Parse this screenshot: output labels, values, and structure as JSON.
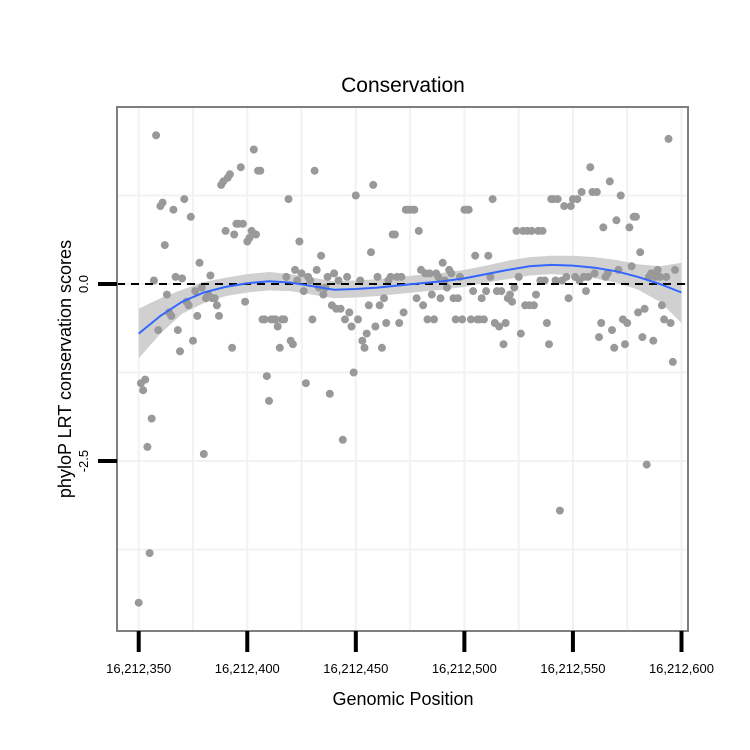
{
  "chart_data": {
    "type": "scatter",
    "title": "Conservation",
    "xlabel": "Genomic Position",
    "ylabel": "phyloP LRT conservation scores",
    "xlim": [
      16212340,
      16212603
    ],
    "ylim": [
      -4.9,
      2.5
    ],
    "x_ticks": [
      16212350,
      16212400,
      16212450,
      16212500,
      16212550,
      16212600
    ],
    "x_tick_labels": [
      "16,212,350",
      "16,212,400",
      "16,212,450",
      "16,212,500",
      "16,212,550",
      "16,212,600"
    ],
    "y_ticks": [
      0,
      -2.5
    ],
    "y_tick_labels": [
      "0.0",
      "-2.5"
    ],
    "reference_line": 0,
    "colors": {
      "points": "#999999",
      "smooth": "#3366ff",
      "band": "#d0d0d0",
      "grid": "#f2f2f2",
      "border": "#7f7f7f",
      "refline": "#000000"
    },
    "points": [
      [
        16212350,
        -4.5
      ],
      [
        16212351,
        -1.4
      ],
      [
        16212352,
        -1.5
      ],
      [
        16212353,
        -1.35
      ],
      [
        16212354,
        -2.3
      ],
      [
        16212355,
        -3.8
      ],
      [
        16212356,
        -1.9
      ],
      [
        16212357,
        0.05
      ],
      [
        16212358,
        2.1
      ],
      [
        16212359,
        -0.65
      ],
      [
        16212360,
        1.1
      ],
      [
        16212361,
        1.15
      ],
      [
        16212362,
        0.55
      ],
      [
        16212363,
        -0.15
      ],
      [
        16212364,
        -0.4
      ],
      [
        16212365,
        -0.45
      ],
      [
        16212366,
        1.05
      ],
      [
        16212367,
        0.1
      ],
      [
        16212368,
        -0.65
      ],
      [
        16212369,
        -0.95
      ],
      [
        16212370,
        0.08
      ],
      [
        16212371,
        1.2
      ],
      [
        16212372,
        -0.25
      ],
      [
        16212373,
        -0.3
      ],
      [
        16212374,
        0.95
      ],
      [
        16212375,
        -0.8
      ],
      [
        16212376,
        -0.1
      ],
      [
        16212377,
        -0.45
      ],
      [
        16212378,
        0.3
      ],
      [
        16212379,
        -0.05
      ],
      [
        16212380,
        -2.4
      ],
      [
        16212381,
        -0.2
      ],
      [
        16212382,
        -0.15
      ],
      [
        16212383,
        0.12
      ],
      [
        16212384,
        -0.2
      ],
      [
        16212385,
        -0.2
      ],
      [
        16212386,
        -0.3
      ],
      [
        16212387,
        -0.45
      ],
      [
        16212388,
        1.4
      ],
      [
        16212389,
        1.45
      ],
      [
        16212390,
        0.75
      ],
      [
        16212391,
        1.5
      ],
      [
        16212392,
        1.55
      ],
      [
        16212393,
        -0.9
      ],
      [
        16212394,
        0.7
      ],
      [
        16212395,
        0.85
      ],
      [
        16212396,
        0.85
      ],
      [
        16212397,
        1.65
      ],
      [
        16212398,
        0.85
      ],
      [
        16212399,
        -0.25
      ],
      [
        16212400,
        0.6
      ],
      [
        16212401,
        0.65
      ],
      [
        16212402,
        0.75
      ],
      [
        16212403,
        1.9
      ],
      [
        16212404,
        0.7
      ],
      [
        16212405,
        1.6
      ],
      [
        16212406,
        1.6
      ],
      [
        16212407,
        -0.5
      ],
      [
        16212408,
        -0.5
      ],
      [
        16212409,
        -1.3
      ],
      [
        16212410,
        -1.65
      ],
      [
        16212411,
        -0.5
      ],
      [
        16212412,
        -0.5
      ],
      [
        16212413,
        -0.5
      ],
      [
        16212414,
        -0.6
      ],
      [
        16212415,
        -0.9
      ],
      [
        16212416,
        -0.5
      ],
      [
        16212417,
        -0.5
      ],
      [
        16212418,
        0.1
      ],
      [
        16212419,
        1.2
      ],
      [
        16212420,
        -0.8
      ],
      [
        16212421,
        -0.85
      ],
      [
        16212422,
        0.2
      ],
      [
        16212423,
        0.05
      ],
      [
        16212424,
        0.6
      ],
      [
        16212425,
        0.15
      ],
      [
        16212426,
        -0.1
      ],
      [
        16212427,
        -1.4
      ],
      [
        16212428,
        0.1
      ],
      [
        16212429,
        0.05
      ],
      [
        16212430,
        -0.5
      ],
      [
        16212431,
        1.6
      ],
      [
        16212432,
        0.2
      ],
      [
        16212433,
        -0.05
      ],
      [
        16212434,
        0.4
      ],
      [
        16212435,
        -0.15
      ],
      [
        16212436,
        -0.05
      ],
      [
        16212437,
        0.1
      ],
      [
        16212438,
        -1.55
      ],
      [
        16212439,
        -0.3
      ],
      [
        16212440,
        0.15
      ],
      [
        16212441,
        -0.35
      ],
      [
        16212442,
        0.05
      ],
      [
        16212443,
        -0.35
      ],
      [
        16212444,
        -2.2
      ],
      [
        16212445,
        -0.5
      ],
      [
        16212446,
        0.1
      ],
      [
        16212447,
        -0.4
      ],
      [
        16212448,
        -0.6
      ],
      [
        16212449,
        -1.25
      ],
      [
        16212450,
        1.25
      ],
      [
        16212451,
        -0.5
      ],
      [
        16212452,
        0.05
      ],
      [
        16212453,
        -0.8
      ],
      [
        16212454,
        -0.9
      ],
      [
        16212455,
        -0.7
      ],
      [
        16212456,
        -0.3
      ],
      [
        16212457,
        0.45
      ],
      [
        16212458,
        1.4
      ],
      [
        16212459,
        -0.6
      ],
      [
        16212460,
        0.1
      ],
      [
        16212461,
        -0.3
      ],
      [
        16212462,
        -0.9
      ],
      [
        16212463,
        -0.2
      ],
      [
        16212464,
        -0.55
      ],
      [
        16212465,
        0.05
      ],
      [
        16212466,
        0.1
      ],
      [
        16212467,
        0.7
      ],
      [
        16212468,
        0.7
      ],
      [
        16212469,
        0.1
      ],
      [
        16212470,
        -0.55
      ],
      [
        16212471,
        0.1
      ],
      [
        16212472,
        -0.4
      ],
      [
        16212473,
        1.05
      ],
      [
        16212474,
        1.05
      ],
      [
        16212475,
        1.05
      ],
      [
        16212476,
        1.05
      ],
      [
        16212477,
        1.05
      ],
      [
        16212478,
        -0.2
      ],
      [
        16212479,
        0.75
      ],
      [
        16212480,
        0.2
      ],
      [
        16212481,
        -0.3
      ],
      [
        16212482,
        0.15
      ],
      [
        16212483,
        -0.5
      ],
      [
        16212484,
        0.15
      ],
      [
        16212485,
        -0.15
      ],
      [
        16212486,
        -0.5
      ],
      [
        16212487,
        0.15
      ],
      [
        16212488,
        0.1
      ],
      [
        16212489,
        -0.2
      ],
      [
        16212490,
        0.3
      ],
      [
        16212491,
        0.05
      ],
      [
        16212492,
        -0.05
      ],
      [
        16212493,
        0.2
      ],
      [
        16212494,
        0.15
      ],
      [
        16212495,
        -0.2
      ],
      [
        16212496,
        -0.5
      ],
      [
        16212497,
        -0.2
      ],
      [
        16212498,
        0.1
      ],
      [
        16212499,
        -0.5
      ],
      [
        16212500,
        1.05
      ],
      [
        16212501,
        1.05
      ],
      [
        16212502,
        1.05
      ],
      [
        16212503,
        -0.5
      ],
      [
        16212504,
        -0.1
      ],
      [
        16212505,
        0.4
      ],
      [
        16212506,
        -0.5
      ],
      [
        16212507,
        -0.5
      ],
      [
        16212508,
        -0.2
      ],
      [
        16212509,
        -0.5
      ],
      [
        16212510,
        -0.1
      ],
      [
        16212511,
        0.4
      ],
      [
        16212512,
        0.1
      ],
      [
        16212513,
        1.2
      ],
      [
        16212514,
        -0.55
      ],
      [
        16212515,
        -0.1
      ],
      [
        16212516,
        -0.6
      ],
      [
        16212517,
        -0.1
      ],
      [
        16212518,
        -0.85
      ],
      [
        16212519,
        -0.55
      ],
      [
        16212520,
        -0.2
      ],
      [
        16212521,
        -0.15
      ],
      [
        16212522,
        -0.25
      ],
      [
        16212523,
        -0.05
      ],
      [
        16212524,
        0.75
      ],
      [
        16212525,
        0.1
      ],
      [
        16212526,
        -0.7
      ],
      [
        16212527,
        0.75
      ],
      [
        16212528,
        -0.3
      ],
      [
        16212529,
        0.75
      ],
      [
        16212530,
        -0.3
      ],
      [
        16212531,
        0.75
      ],
      [
        16212532,
        -0.3
      ],
      [
        16212533,
        -0.15
      ],
      [
        16212534,
        0.75
      ],
      [
        16212535,
        0.05
      ],
      [
        16212536,
        0.75
      ],
      [
        16212537,
        0.05
      ],
      [
        16212538,
        -0.55
      ],
      [
        16212539,
        -0.85
      ],
      [
        16212540,
        1.2
      ],
      [
        16212541,
        1.2
      ],
      [
        16212542,
        0.05
      ],
      [
        16212543,
        1.2
      ],
      [
        16212544,
        -3.2
      ],
      [
        16212545,
        0.05
      ],
      [
        16212546,
        1.1
      ],
      [
        16212547,
        0.1
      ],
      [
        16212548,
        -0.2
      ],
      [
        16212549,
        1.1
      ],
      [
        16212550,
        1.2
      ],
      [
        16212551,
        0.1
      ],
      [
        16212552,
        1.2
      ],
      [
        16212553,
        0.05
      ],
      [
        16212554,
        1.3
      ],
      [
        16212555,
        0.1
      ],
      [
        16212556,
        -0.1
      ],
      [
        16212557,
        0.1
      ],
      [
        16212558,
        1.65
      ],
      [
        16212559,
        1.3
      ],
      [
        16212560,
        0.15
      ],
      [
        16212561,
        1.3
      ],
      [
        16212562,
        -0.75
      ],
      [
        16212563,
        -0.55
      ],
      [
        16212564,
        0.8
      ],
      [
        16212565,
        0.1
      ],
      [
        16212566,
        0.15
      ],
      [
        16212567,
        1.45
      ],
      [
        16212568,
        -0.65
      ],
      [
        16212569,
        -0.9
      ],
      [
        16212570,
        0.9
      ],
      [
        16212571,
        0.2
      ],
      [
        16212572,
        1.25
      ],
      [
        16212573,
        -0.5
      ],
      [
        16212574,
        -0.85
      ],
      [
        16212575,
        -0.55
      ],
      [
        16212576,
        0.8
      ],
      [
        16212577,
        0.25
      ],
      [
        16212578,
        0.95
      ],
      [
        16212579,
        0.95
      ],
      [
        16212580,
        -0.4
      ],
      [
        16212581,
        0.45
      ],
      [
        16212582,
        -0.75
      ],
      [
        16212583,
        -0.35
      ],
      [
        16212584,
        -2.55
      ],
      [
        16212585,
        0.1
      ],
      [
        16212586,
        0.15
      ],
      [
        16212587,
        -0.8
      ],
      [
        16212588,
        0.1
      ],
      [
        16212589,
        0.2
      ],
      [
        16212590,
        0.1
      ],
      [
        16212591,
        -0.3
      ],
      [
        16212592,
        -0.5
      ],
      [
        16212593,
        0.1
      ],
      [
        16212594,
        2.05
      ],
      [
        16212595,
        -0.55
      ],
      [
        16212596,
        -1.1
      ],
      [
        16212597,
        0.2
      ]
    ],
    "smooth_line": {
      "x": [
        16212350,
        16212360,
        16212370,
        16212380,
        16212390,
        16212400,
        16212410,
        16212420,
        16212430,
        16212440,
        16212450,
        16212460,
        16212470,
        16212480,
        16212490,
        16212500,
        16212510,
        16212520,
        16212530,
        16212540,
        16212550,
        16212560,
        16212570,
        16212580,
        16212590,
        16212600
      ],
      "y": [
        -0.7,
        -0.45,
        -0.25,
        -0.12,
        -0.04,
        0.01,
        0.04,
        0.02,
        -0.03,
        -0.08,
        -0.07,
        -0.05,
        -0.02,
        0.01,
        0.04,
        0.08,
        0.14,
        0.2,
        0.25,
        0.27,
        0.26,
        0.23,
        0.18,
        0.1,
        0.0,
        -0.12
      ],
      "ci_lower": [
        -1.05,
        -0.7,
        -0.42,
        -0.27,
        -0.17,
        -0.12,
        -0.09,
        -0.1,
        -0.15,
        -0.2,
        -0.19,
        -0.17,
        -0.14,
        -0.11,
        -0.08,
        -0.04,
        0.02,
        0.07,
        0.12,
        0.14,
        0.12,
        0.08,
        0.02,
        -0.08,
        -0.25,
        -0.55
      ],
      "ci_upper": [
        -0.35,
        -0.2,
        -0.08,
        0.03,
        0.09,
        0.14,
        0.17,
        0.14,
        0.09,
        0.04,
        0.05,
        0.07,
        0.1,
        0.13,
        0.16,
        0.2,
        0.26,
        0.33,
        0.38,
        0.4,
        0.4,
        0.38,
        0.34,
        0.28,
        0.25,
        0.3
      ]
    }
  }
}
